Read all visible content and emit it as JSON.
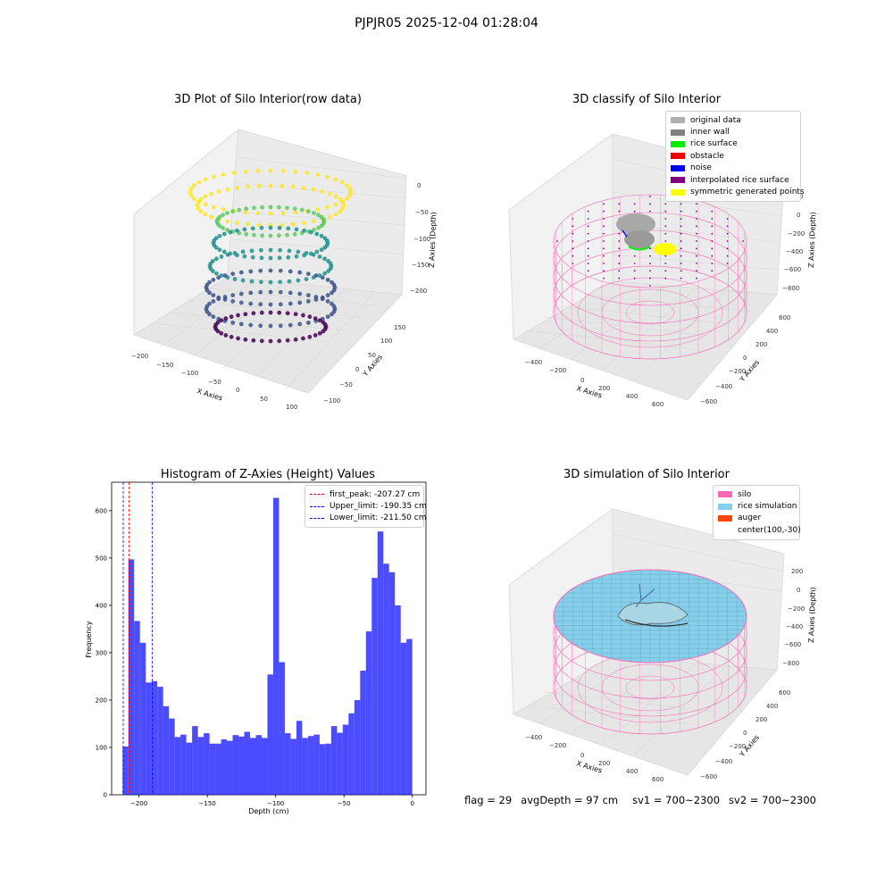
{
  "suptitle": "PJPJR05 2025-12-04 01:28:04",
  "plots": {
    "raw": {
      "title": "3D Plot of Silo Interior(row data)",
      "xlabel": "X Axies",
      "ylabel": "Y Axies",
      "zlabel": "Z Axies (Depth)",
      "xticks": [
        "−200",
        "−150",
        "−100",
        "−50",
        "0",
        "50",
        "100"
      ],
      "yticks": [
        "−100",
        "−50",
        "0",
        "50",
        "100",
        "150"
      ],
      "zticks": [
        "0",
        "−50",
        "−100",
        "−150",
        "−200"
      ]
    },
    "classify": {
      "title": "3D classify of Silo Interior",
      "xlabel": "X Axies",
      "ylabel": "Y Axies",
      "zlabel": "Z Axies (Depth)",
      "xticks": [
        "−400",
        "−200",
        "0",
        "200",
        "400",
        "600"
      ],
      "yticks": [
        "−600",
        "−400",
        "−200",
        "0",
        "200",
        "400",
        "600"
      ],
      "zticks": [
        "200",
        "0",
        "−200",
        "−400",
        "−600",
        "−800"
      ],
      "legend": [
        {
          "label": "original data",
          "color": "#b0b0b0"
        },
        {
          "label": "inner wall",
          "color": "#808080"
        },
        {
          "label": "rice surface",
          "color": "#00ee00"
        },
        {
          "label": "obstacle",
          "color": "#ee0000"
        },
        {
          "label": "noise",
          "color": "#0000ee"
        },
        {
          "label": "interpolated rice surface",
          "color": "#800080"
        },
        {
          "label": "symmetric generated points",
          "color": "#ffff00"
        }
      ]
    },
    "simulation": {
      "title": "3D simulation of Silo Interior",
      "xlabel": "X Axies",
      "ylabel": "Y Axies",
      "zlabel": "Z Axies (Depth)",
      "xticks": [
        "−400",
        "−200",
        "0",
        "200",
        "400",
        "600"
      ],
      "yticks": [
        "−600",
        "−400",
        "−200",
        "0",
        "200",
        "400",
        "600"
      ],
      "zticks": [
        "200",
        "0",
        "−200",
        "−400",
        "−600",
        "−800"
      ],
      "legend": [
        {
          "label": "silo",
          "color": "#ff69b4"
        },
        {
          "label": "rice simulation",
          "color": "#87ceeb"
        },
        {
          "label": "auger",
          "color": "#ff4500"
        },
        {
          "label": "center(100,-30)",
          "color": ""
        }
      ]
    }
  },
  "chart_data": [
    {
      "type": "bar",
      "title": "Histogram of Z-Axies (Height) Values",
      "xlabel": "Depth (cm)",
      "ylabel": "Frequency",
      "xlim": [
        -220,
        10
      ],
      "ylim": [
        0,
        660
      ],
      "xticks": [
        -200,
        -150,
        -100,
        -50,
        0
      ],
      "yticks": [
        0,
        100,
        200,
        300,
        400,
        500,
        600
      ],
      "bin_start": -212,
      "bin_width": 4.24,
      "values": [
        102,
        497,
        367,
        321,
        237,
        240,
        228,
        187,
        161,
        122,
        127,
        110,
        145,
        122,
        130,
        108,
        108,
        117,
        114,
        126,
        123,
        133,
        120,
        126,
        120,
        254,
        627,
        280,
        130,
        118,
        156,
        120,
        124,
        127,
        107,
        108,
        145,
        131,
        148,
        172,
        200,
        262,
        345,
        458,
        556,
        488,
        470,
        400,
        321,
        329
      ],
      "color": "#0000ff",
      "vlines": [
        {
          "name": "first_peak: -207.27 cm",
          "x": -207.27,
          "color": "#ff0000"
        },
        {
          "name": "Upper_limit: -190.35 cm",
          "x": -190.35,
          "color": "#0000ff"
        },
        {
          "name": "Lower_limit: -211.50 cm",
          "x": -211.5,
          "color": "#0000ff"
        }
      ],
      "legend_position": "top-right"
    }
  ],
  "status": {
    "flag": "flag = 29",
    "avg": "avgDepth = 97 cm",
    "sv1": "sv1 = 700~2300",
    "sv2": "sv2 = 700~2300"
  }
}
